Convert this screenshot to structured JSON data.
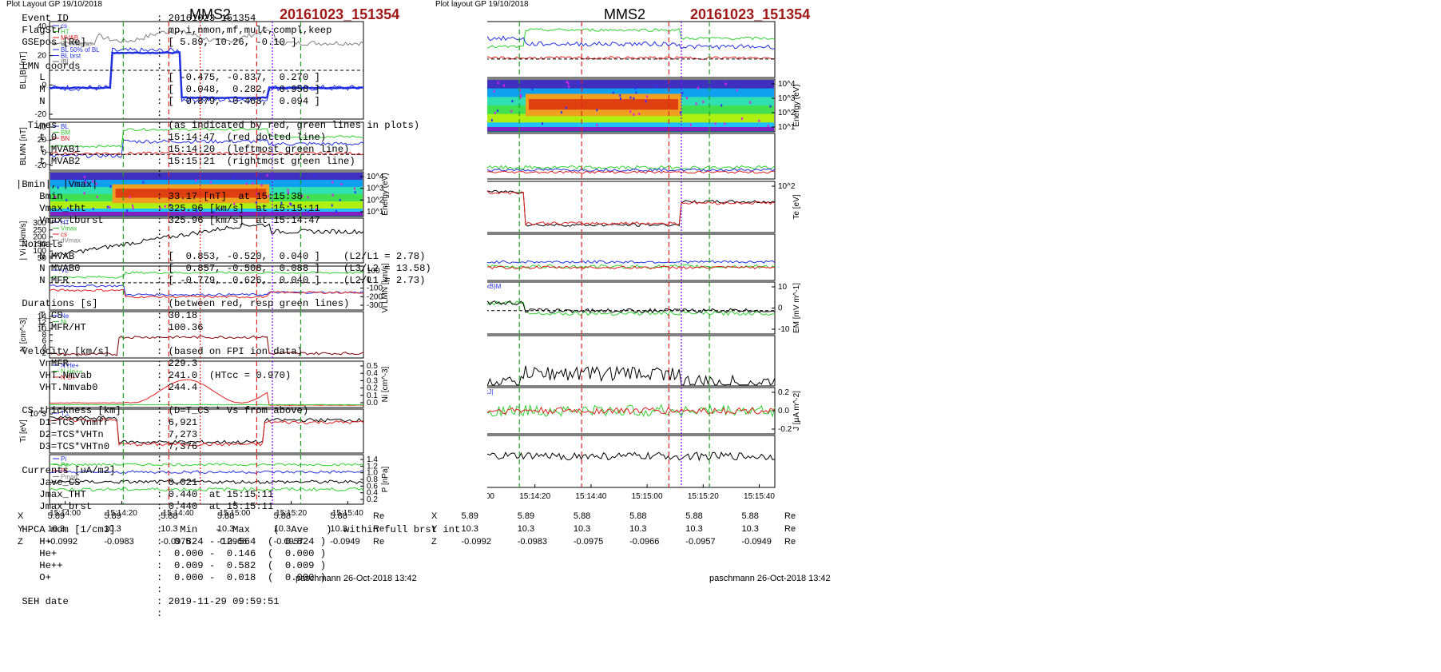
{
  "left_plot": {
    "title_small": "Plot Layout GP 19/10/2018",
    "spacecraft": "MMS2",
    "event_label": "20161023_151354",
    "footer": "paschmann 26-Oct-2018 13:42"
  },
  "mid_plot": {
    "title_small": "Plot layout GP 19/10/2018",
    "spacecraft": "MMS2",
    "event_label": "20161023_151354",
    "footer": "paschmann 26-Oct-2018 13:42"
  },
  "time_ticks": [
    "15:14:00",
    "15:14:20",
    "15:14:40",
    "15:15:00",
    "15:15:20",
    "15:15:40"
  ],
  "position_table": {
    "rows": [
      {
        "label": "X",
        "values": [
          "5.89",
          "5.89",
          "5.88",
          "5.88",
          "5.88",
          "5.88"
        ],
        "unit": "Re"
      },
      {
        "label": "Y",
        "values": [
          "10.3",
          "10.3",
          "10.3",
          "10.3",
          "10.3",
          "10.3"
        ],
        "unit": "Re"
      },
      {
        "label": "Z",
        "values": [
          "-0.0992",
          "-0.0983",
          "-0.0975",
          "-0.0966",
          "-0.0957",
          "-0.0949"
        ],
        "unit": "Re"
      }
    ]
  },
  "colors": {
    "red_line": "#e02020",
    "green_line": "#20a020",
    "purple_line": "#8000ff",
    "trace_blue": "#2030e0",
    "trace_green": "#30d030",
    "trace_red": "#e02020",
    "trace_gray": "#808080",
    "title_red": "#a01818"
  },
  "left_panels": [
    {
      "ylabel": "BL,|B| [nT]",
      "yticks": [
        "40",
        "20",
        "0",
        "-20"
      ],
      "legend": [
        "cs",
        "HT",
        "MVAB",
        "BL,minmax",
        "BL 50% of BL",
        "BL brst",
        "|B|"
      ]
    },
    {
      "ylabel": "BLMN [nT]",
      "yticks": [
        "40",
        "20",
        "0",
        "-20"
      ],
      "legend": [
        "BL",
        "BM",
        "BN"
      ]
    },
    {
      "ylabel": "Energy (eV)",
      "yticks": [
        "10^4",
        "10^3",
        "10^2",
        "10^1"
      ],
      "legend": []
    },
    {
      "ylabel": "| Vi | [km/s]",
      "yticks": [
        "300",
        "250",
        "200",
        "150",
        "100",
        "50"
      ],
      "legend": [
        "HT",
        "Vmax",
        "cs",
        "dVmax"
      ]
    },
    {
      "ylabel": "Vi LMN [km/s]",
      "yticks": [
        "100",
        "0",
        "-100",
        "-200",
        "-300"
      ],
      "legend": [
        "VL"
      ]
    },
    {
      "ylabel": "N [cm^-3]",
      "yticks": [
        "14",
        "12",
        "10",
        "8",
        "6",
        "4",
        "2"
      ],
      "legend": [
        "Ne",
        "Ni"
      ]
    },
    {
      "ylabel": "Ni [cm^-3]",
      "yticks": [
        "0.5",
        "0.4",
        "0.3",
        "0.2",
        "0.1",
        "0.0"
      ],
      "legend": [
        "N He+",
        "N He++",
        "N O+"
      ]
    },
    {
      "ylabel": "Ti [eV]",
      "yticks": [
        "10^3"
      ],
      "legend": [
        "T⊥"
      ]
    },
    {
      "ylabel": "P [nPa]",
      "yticks": [
        "1.4",
        "1.2",
        "1.0",
        "0.8",
        "0.6",
        "0.4",
        "0.2"
      ],
      "legend": [
        "Pi",
        "Pe",
        "Pt",
        "Pmag"
      ]
    }
  ],
  "mid_panels": [
    {
      "ylabel": "BLMN [nT]",
      "yticks": [
        "40",
        "20",
        "0",
        "-20"
      ],
      "legend": [
        "BL",
        "BM",
        "BN"
      ]
    },
    {
      "ylabel": "Energy (eV)",
      "yticks": [
        "10^4",
        "10^3",
        "10^2",
        "10^1"
      ],
      "legend": []
    },
    {
      "ylabel": "Ve LMN [km/s]",
      "yticks": [
        "1500",
        "1000",
        "500",
        "0",
        "-500"
      ],
      "legend": [
        "VL",
        "VM"
      ]
    },
    {
      "ylabel": "Te [eV]",
      "yticks": [
        "10^2"
      ],
      "legend": [
        "T∥"
      ]
    },
    {
      "ylabel": "ELMN [mV m^-1]",
      "yticks": [
        "40",
        "20",
        "0",
        "-20"
      ],
      "legend": [
        "EL",
        "EM",
        "EN"
      ]
    },
    {
      "ylabel": "EM [mV m^-1]",
      "yticks": [
        "10",
        "0",
        "-10"
      ],
      "legend": [
        "-(VexB)M",
        "EM"
      ]
    },
    {
      "ylabel": "|J| [μA m^-2]",
      "yticks": [
        "0.4",
        "0.3",
        "0.2",
        "0.1"
      ],
      "legend": [
        "|J|"
      ]
    },
    {
      "ylabel": "J [μA m^-2]",
      "yticks": [
        "0.2",
        "0.0",
        "-0.2"
      ],
      "legend": [
        "|maxJ|",
        "JL",
        "JN"
      ]
    },
    {
      "ylabel": "J*E' [nW m^-3]",
      "yticks": [
        "0.5",
        "0.0",
        "-0.5"
      ],
      "legend": [
        "J*E'"
      ]
    }
  ],
  "summary": [
    {
      "k": " Event ID",
      "v": ": 20161023_151354"
    },
    {
      "k": " FlagStr",
      "v": ": mp,i,nmon,mf,mult,compl,keep"
    },
    {
      "k": " GSEpos [Re]",
      "v": ": [ 5.89, 10.26, -0.10 ]"
    },
    {
      "k": "",
      "v": ":"
    },
    {
      "k": " LMN coords",
      "v": ":"
    },
    {
      "k": "    L",
      "v": ": [ -0.475, -0.837,  0.270 ]"
    },
    {
      "k": "    M",
      "v": ": [  0.048,  0.282,  0.958 ]"
    },
    {
      "k": "    N",
      "v": ": [  0.879, -0.468,  0.094 ]"
    },
    {
      "k": "",
      "v": ":"
    },
    {
      "k": "  Times",
      "v": ": (as indicated by red, green lines in plots)"
    },
    {
      "k": "    t_0",
      "v": ": 15:14:47  (red dotted line)"
    },
    {
      "k": "    t_MVAB1",
      "v": ": 15:14:20  (leftmost green line)"
    },
    {
      "k": "    t_MVAB2",
      "v": ": 15:15:21  (rightmost green line)"
    },
    {
      "k": "",
      "v": ":"
    },
    {
      "k": "|Bmin|, |Vmax|",
      "v": ""
    },
    {
      "k": "    Bmin",
      "v": ": 33.17 [nT]  at 15:15:38"
    },
    {
      "k": "    Vmax_tht",
      "v": ": 325.96 [km/s]  at 15:15:11"
    },
    {
      "k": "    Vmax_tburst",
      "v": ": 325.96 [km/s]  at 15:14:47"
    },
    {
      "k": "",
      "v": ":"
    },
    {
      "k": " Normals",
      "v": ":"
    },
    {
      "k": "    N MVAB",
      "v": ": [  0.853, -0.520,  0.040 ]    (L2/L1 = 2.78)"
    },
    {
      "k": "    N MVAB0",
      "v": ": [  0.857, -0.508,  0.088 ]    (L3/L2 = 13.58)"
    },
    {
      "k": "    N MFR",
      "v": ": [ -0.779,  0.626,  0.040 ]    (L2/L1 = 2.73)"
    },
    {
      "k": "",
      "v": ":"
    },
    {
      "k": " Durations [s]",
      "v": ": (between red, resp green lines)"
    },
    {
      "k": "    T_CS",
      "v": ": 30.18"
    },
    {
      "k": "    T_MFR/HT",
      "v": ": 100.36"
    },
    {
      "k": "",
      "v": ":"
    },
    {
      "k": " Velocity [km/s]",
      "v": ": (based on FPI ion data)"
    },
    {
      "k": "    VnMFR",
      "v": ": 229.3"
    },
    {
      "k": "    VHT.Nmvab",
      "v": ": 241.0  (HTcc = 0.970)"
    },
    {
      "k": "    VHT.Nmvab0",
      "v": ": 244.4"
    },
    {
      "k": "",
      "v": ":"
    },
    {
      "k": " CS thickness [km]",
      "v": ": (D=T_CS * Vs from above)"
    },
    {
      "k": "    D1=TCS*Vnmfr",
      "v": ": 6,921"
    },
    {
      "k": "    D2=TCS*VHTn",
      "v": ": 7,273"
    },
    {
      "k": "    D3=TCS*VHTn0",
      "v": ": 7,376"
    },
    {
      "k": "",
      "v": ":"
    },
    {
      "k": " Currents [uA/m2]",
      "v": ":"
    },
    {
      "k": "    Jave_CS",
      "v": ": 0.021"
    },
    {
      "k": "    Jmax_THT",
      "v": ": 0.440  at 15:15:11"
    },
    {
      "k": "    Jmax_brst",
      "v": ": 0.440  at 15:15:11"
    },
    {
      "k": "",
      "v": ":"
    },
    {
      "k": " HPCA mom [1/cm3]",
      "v": ":   Min   -  Max    (  Ave   )  within full brst int"
    },
    {
      "k": "    H+",
      "v": ":  0.824 - 12.564  (  0.824 )"
    },
    {
      "k": "    He+",
      "v": ":  0.000 -  0.146  (  0.000 )"
    },
    {
      "k": "    He++",
      "v": ":  0.009 -  0.582  (  0.009 )"
    },
    {
      "k": "    O+",
      "v": ":  0.000 -  0.018  (  0.000 )"
    },
    {
      "k": "",
      "v": ":"
    },
    {
      "k": " SEH date",
      "v": ": 2019-11-29 09:59:51"
    },
    {
      "k": "",
      "v": ":"
    }
  ],
  "chart_data": [
    {
      "type": "line",
      "title": "MMS2",
      "subtitle": "20161023_151354",
      "x": [
        "15:14:00",
        "15:14:20",
        "15:14:40",
        "15:15:00",
        "15:15:20",
        "15:15:40"
      ],
      "vertical_markers": {
        "green": [
          "15:14:20",
          "15:15:21"
        ],
        "red": [
          "15:14:27",
          "15:15:04"
        ],
        "red_dotted": "15:14:47",
        "purple": "15:15:11"
      },
      "series": [
        {
          "name": "BL brst",
          "values": [
            -8,
            22,
            20,
            -5,
            -20,
            -2
          ]
        },
        {
          "name": "|B|",
          "values": [
            40,
            35,
            44,
            46,
            38,
            40
          ]
        },
        {
          "name": "Ni",
          "values": [
            0.8,
            5,
            4.5,
            5,
            1,
            1
          ]
        },
        {
          "name": "N He++",
          "values": [
            0.0,
            0.1,
            0.25,
            0.35,
            0.5,
            0.0
          ]
        }
      ]
    },
    {
      "type": "line",
      "title": "MMS2",
      "subtitle": "20161023_151354",
      "x": [
        "15:14:00",
        "15:14:20",
        "15:14:40",
        "15:15:00",
        "15:15:20",
        "15:15:40"
      ],
      "series": [
        {
          "name": "|J|",
          "values": [
            0.01,
            0.2,
            0.12,
            0.15,
            0.02,
            0.01
          ]
        },
        {
          "name": "J*E'",
          "values": [
            0.0,
            0.3,
            0.0,
            0.1,
            0.0,
            0.0
          ]
        }
      ]
    }
  ]
}
